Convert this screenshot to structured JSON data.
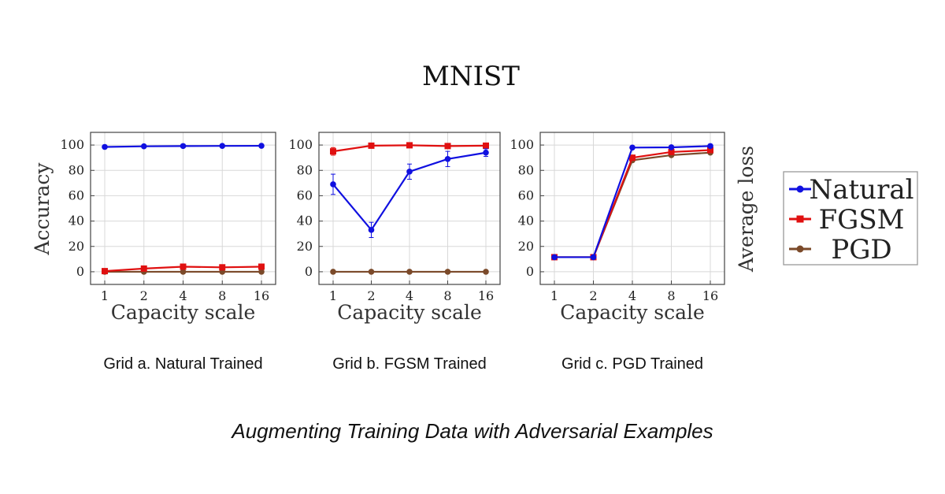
{
  "figure": {
    "title": "MNIST",
    "footer_caption": "Augmenting Training Data with Adversarial Examples",
    "legend": [
      {
        "name": "Natural",
        "color": "#1010e0",
        "marker": "circle"
      },
      {
        "name": "FGSM",
        "color": "#e01010",
        "marker": "square"
      },
      {
        "name": "PGD",
        "color": "#7b4a2a",
        "marker": "circle"
      }
    ]
  },
  "chart_data": [
    {
      "type": "line",
      "caption": "Grid a. Natural Trained",
      "xlabel": "Capacity scale",
      "ylabel": "Accuracy",
      "x": [
        "1",
        "2",
        "4",
        "8",
        "16"
      ],
      "yticks": [
        "0",
        "20",
        "40",
        "60",
        "80",
        "100"
      ],
      "ylim": [
        -10,
        110
      ],
      "grid": true,
      "series": [
        {
          "name": "Natural",
          "color": "#1010e0",
          "marker": "circle",
          "values": [
            98.5,
            99,
            99.2,
            99.3,
            99.4
          ]
        },
        {
          "name": "FGSM",
          "color": "#e01010",
          "marker": "square",
          "values": [
            0.5,
            2.5,
            4.0,
            3.5,
            4.0
          ]
        },
        {
          "name": "PGD",
          "color": "#7b4a2a",
          "marker": "circle",
          "values": [
            0,
            0,
            0,
            0,
            0
          ]
        }
      ]
    },
    {
      "type": "line",
      "caption": "Grid b. FGSM Trained",
      "xlabel": "Capacity scale",
      "ylabel": "",
      "x": [
        "1",
        "2",
        "4",
        "8",
        "16"
      ],
      "yticks": [
        "0",
        "20",
        "40",
        "60",
        "80",
        "100"
      ],
      "ylim": [
        -10,
        110
      ],
      "grid": true,
      "series": [
        {
          "name": "Natural",
          "color": "#1010e0",
          "marker": "circle",
          "values": [
            69,
            33,
            79,
            89,
            94
          ],
          "errors": [
            8,
            6,
            6,
            6,
            3
          ]
        },
        {
          "name": "FGSM",
          "color": "#e01010",
          "marker": "square",
          "values": [
            95,
            99.5,
            99.8,
            99.2,
            99.5
          ],
          "errors": [
            3,
            0,
            0,
            0,
            0
          ]
        },
        {
          "name": "PGD",
          "color": "#7b4a2a",
          "marker": "circle",
          "values": [
            0,
            0,
            0,
            0,
            0
          ]
        }
      ]
    },
    {
      "type": "line",
      "caption": "Grid c. PGD Trained",
      "xlabel": "Capacity scale",
      "ylabel": "Average loss",
      "x": [
        "1",
        "2",
        "4",
        "8",
        "16"
      ],
      "yticks": [
        "0",
        "20",
        "40",
        "60",
        "80",
        "100"
      ],
      "ylim": [
        -10,
        110
      ],
      "grid": true,
      "series": [
        {
          "name": "Natural",
          "color": "#1010e0",
          "marker": "circle",
          "values": [
            11.5,
            11.5,
            98,
            98.2,
            99.2
          ]
        },
        {
          "name": "FGSM",
          "color": "#e01010",
          "marker": "square",
          "values": [
            11.5,
            11.5,
            90,
            94.5,
            96
          ]
        },
        {
          "name": "PGD",
          "color": "#7b4a2a",
          "marker": "circle",
          "values": [
            11.5,
            11.5,
            88,
            92,
            94
          ]
        }
      ]
    }
  ]
}
